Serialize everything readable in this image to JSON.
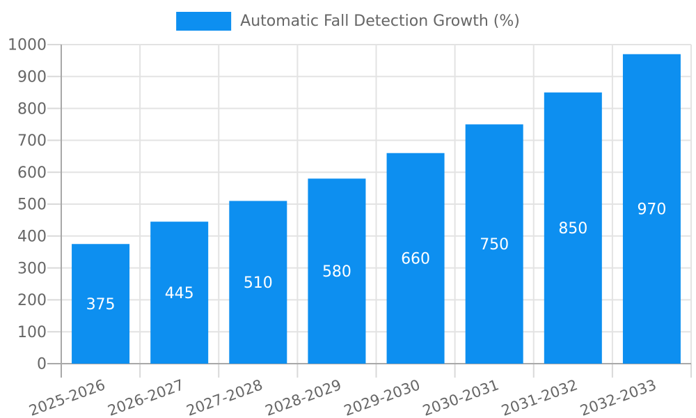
{
  "legend": {
    "label": "Automatic Fall Detection Growth (%)"
  },
  "chart_data": {
    "type": "bar",
    "title": "Automatic Fall Detection Growth (%)",
    "categories": [
      "2025-2026",
      "2026-2027",
      "2027-2028",
      "2028-2029",
      "2029-2030",
      "2030-2031",
      "2031-2032",
      "2032-2033"
    ],
    "values": [
      375,
      445,
      510,
      580,
      660,
      750,
      850,
      970
    ],
    "xlabel": "",
    "ylabel": "",
    "ylim": [
      0,
      1000
    ],
    "ytick_step": 100,
    "grid": true,
    "legend_position": "top",
    "x_tick_rotation_deg": -20,
    "colors": {
      "bar": "#0d8ff0",
      "value_label": "#ffffff",
      "tick_label": "#666666",
      "grid": "#e3e3e3",
      "tick": "#d9d9d9",
      "axis": "#a8a8a8",
      "legend_text": "#666666",
      "background": "#ffffff"
    }
  }
}
